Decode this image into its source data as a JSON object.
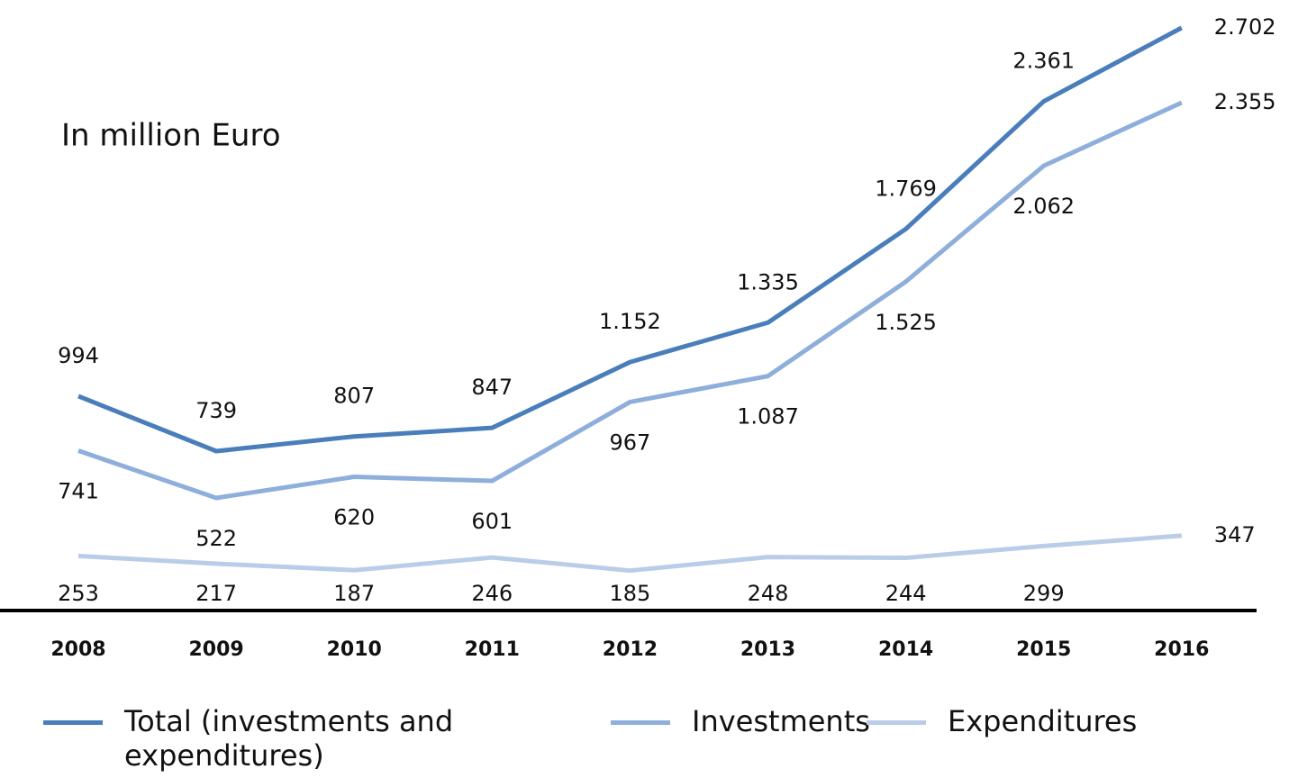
{
  "chart_data": {
    "type": "line",
    "title": "In million Euro",
    "categories": [
      "2008",
      "2009",
      "2010",
      "2011",
      "2012",
      "2013",
      "2014",
      "2015",
      "2016"
    ],
    "series": [
      {
        "name": "Total (investments and expenditures)",
        "color": "#4a7ebb",
        "values": [
          994,
          739,
          807,
          847,
          1152,
          1335,
          1769,
          2361,
          2702
        ],
        "value_labels": [
          "994",
          "739",
          "807",
          "847",
          "1.152",
          "1.335",
          "1.769",
          "2.361",
          "2.702"
        ]
      },
      {
        "name": "Investments",
        "color": "#8eaedb",
        "values": [
          741,
          522,
          620,
          601,
          967,
          1087,
          1525,
          2062,
          2355
        ],
        "value_labels": [
          "741",
          "522",
          "620",
          "601",
          "967",
          "1.087",
          "1.525",
          "2.062",
          "2.355"
        ]
      },
      {
        "name": "Expenditures",
        "color": "#b9cde9",
        "values": [
          253,
          217,
          187,
          246,
          185,
          248,
          244,
          299,
          347
        ],
        "value_labels": [
          "253",
          "217",
          "187",
          "246",
          "185",
          "248",
          "244",
          "299",
          "347"
        ]
      }
    ],
    "ylim": [
      0,
      2800
    ]
  }
}
